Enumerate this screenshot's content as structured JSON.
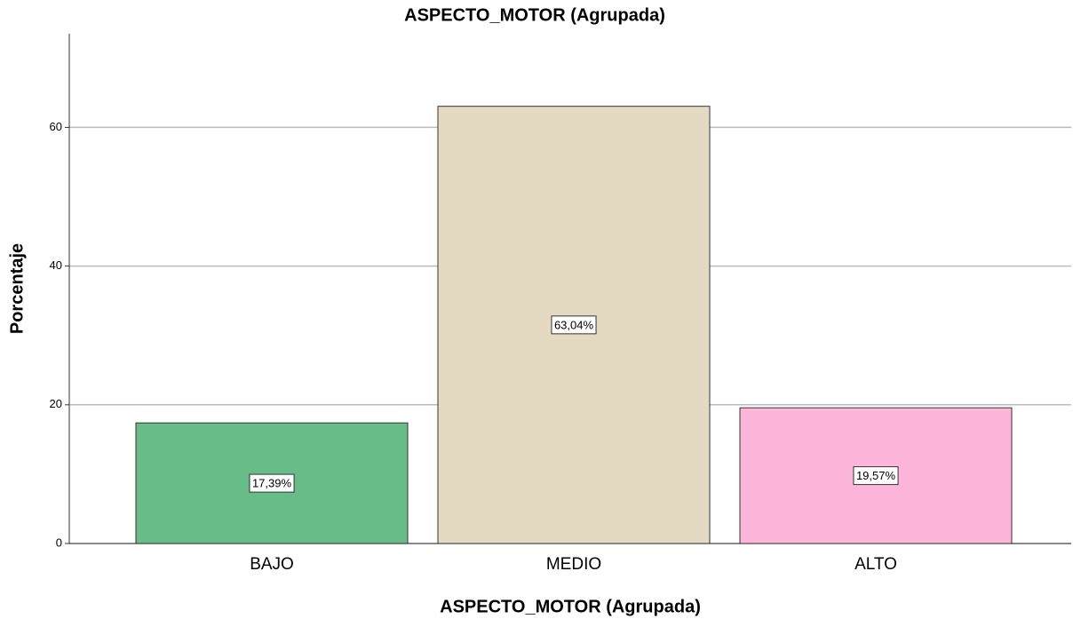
{
  "chart_data": {
    "type": "bar",
    "title": "ASPECTO_MOTOR (Agrupada)",
    "x_label": "ASPECTO_MOTOR (Agrupada)",
    "y_label": "Porcentaje",
    "categories": [
      "BAJO",
      "MEDIO",
      "ALTO"
    ],
    "values": [
      17.39,
      63.04,
      19.57
    ],
    "value_labels": [
      "17,39%",
      "63,04%",
      "19,57%"
    ],
    "colors": [
      "#66bd87",
      "#e3dac1",
      "#fdb6d9"
    ],
    "ylim": [
      0,
      73.5
    ],
    "yticks": [
      0,
      20,
      40,
      60
    ],
    "grid": true
  }
}
